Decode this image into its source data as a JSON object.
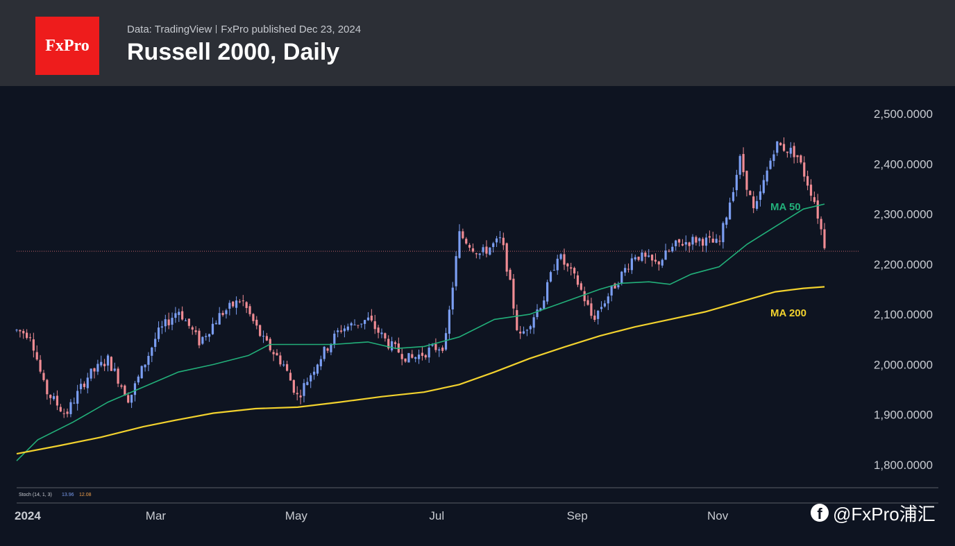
{
  "header": {
    "logo_text": "FxPro",
    "source": "Data: TradingView",
    "published": "FxPro published Dec 23, 2024",
    "title": "Russell 2000, Daily"
  },
  "watermark": {
    "text": "@FxPro浦汇",
    "icon": "facebook-icon"
  },
  "stoch_label": {
    "text": "Stoch (14, 1, 3)",
    "k": "13.96",
    "d": "12.08"
  },
  "colors": {
    "background": "#0e1421",
    "header": "#2c2f36",
    "up_candle": "#7b9ef2",
    "down_candle": "#f08c94",
    "ma50": "#22b07a",
    "ma200": "#f2d22e",
    "axis_text": "#c9ccd2",
    "logo": "#ee1c1c"
  },
  "chart_data": {
    "type": "candlestick",
    "y_axis": {
      "ticks": [
        1800,
        1900,
        2000,
        2100,
        2200,
        2300,
        2400,
        2500
      ],
      "tick_labels": [
        "1,800.0000",
        "1,900.0000",
        "2,000.0000",
        "2,100.0000",
        "2,200.0000",
        "2,300.0000",
        "2,400.0000",
        "2,500.0000"
      ],
      "range": [
        1760,
        2520
      ]
    },
    "x_axis": {
      "labels": [
        "2024",
        "Mar",
        "May",
        "Jul",
        "Sep",
        "Nov"
      ],
      "label_months": [
        0,
        2,
        4,
        6,
        8,
        10
      ]
    },
    "current_price_line": 2226,
    "series": [
      {
        "name": "MA 50",
        "color": "#22b07a",
        "points": [
          [
            0,
            1808
          ],
          [
            0.3,
            1850
          ],
          [
            0.8,
            1885
          ],
          [
            1.3,
            1925
          ],
          [
            1.8,
            1955
          ],
          [
            2.3,
            1985
          ],
          [
            2.8,
            2000
          ],
          [
            3.3,
            2018
          ],
          [
            3.6,
            2040
          ],
          [
            4.0,
            2040
          ],
          [
            4.5,
            2040
          ],
          [
            5.0,
            2045
          ],
          [
            5.4,
            2032
          ],
          [
            5.8,
            2036
          ],
          [
            6.3,
            2055
          ],
          [
            6.8,
            2090
          ],
          [
            7.3,
            2100
          ],
          [
            7.8,
            2125
          ],
          [
            8.3,
            2150
          ],
          [
            8.6,
            2162
          ],
          [
            9.0,
            2165
          ],
          [
            9.3,
            2160
          ],
          [
            9.6,
            2180
          ],
          [
            10.0,
            2195
          ],
          [
            10.4,
            2240
          ],
          [
            10.8,
            2275
          ],
          [
            11.2,
            2310
          ],
          [
            11.5,
            2320
          ]
        ]
      },
      {
        "name": "MA 200",
        "color": "#f2d22e",
        "points": [
          [
            0,
            1822
          ],
          [
            0.6,
            1838
          ],
          [
            1.2,
            1855
          ],
          [
            1.8,
            1876
          ],
          [
            2.3,
            1890
          ],
          [
            2.8,
            1903
          ],
          [
            3.4,
            1912
          ],
          [
            4.0,
            1915
          ],
          [
            4.6,
            1925
          ],
          [
            5.2,
            1936
          ],
          [
            5.8,
            1945
          ],
          [
            6.3,
            1960
          ],
          [
            6.8,
            1985
          ],
          [
            7.3,
            2012
          ],
          [
            7.8,
            2035
          ],
          [
            8.3,
            2057
          ],
          [
            8.8,
            2075
          ],
          [
            9.3,
            2090
          ],
          [
            9.8,
            2105
          ],
          [
            10.3,
            2125
          ],
          [
            10.8,
            2145
          ],
          [
            11.2,
            2152
          ],
          [
            11.5,
            2155
          ]
        ]
      }
    ],
    "candles_key_points": [
      [
        0,
        2068
      ],
      [
        0.2,
        2060
      ],
      [
        0.4,
        1950
      ],
      [
        0.7,
        1900
      ],
      [
        1.0,
        1975
      ],
      [
        1.3,
        2010
      ],
      [
        1.6,
        1930
      ],
      [
        2.0,
        2060
      ],
      [
        2.3,
        2110
      ],
      [
        2.6,
        2045
      ],
      [
        2.9,
        2100
      ],
      [
        3.2,
        2130
      ],
      [
        3.5,
        2050
      ],
      [
        3.8,
        2000
      ],
      [
        4.0,
        1935
      ],
      [
        4.3,
        2010
      ],
      [
        4.6,
        2070
      ],
      [
        5.0,
        2090
      ],
      [
        5.3,
        2040
      ],
      [
        5.6,
        2010
      ],
      [
        5.9,
        2030
      ],
      [
        6.1,
        2040
      ],
      [
        6.3,
        2260
      ],
      [
        6.6,
        2220
      ],
      [
        6.9,
        2250
      ],
      [
        7.0,
        2180
      ],
      [
        7.15,
        2050
      ],
      [
        7.5,
        2130
      ],
      [
        7.7,
        2220
      ],
      [
        8.0,
        2160
      ],
      [
        8.2,
        2090
      ],
      [
        8.5,
        2155
      ],
      [
        8.8,
        2220
      ],
      [
        9.1,
        2200
      ],
      [
        9.4,
        2240
      ],
      [
        9.7,
        2250
      ],
      [
        10.0,
        2240
      ],
      [
        10.3,
        2410
      ],
      [
        10.5,
        2300
      ],
      [
        10.8,
        2440
      ],
      [
        11.1,
        2420
      ],
      [
        11.35,
        2330
      ],
      [
        11.5,
        2240
      ]
    ]
  }
}
